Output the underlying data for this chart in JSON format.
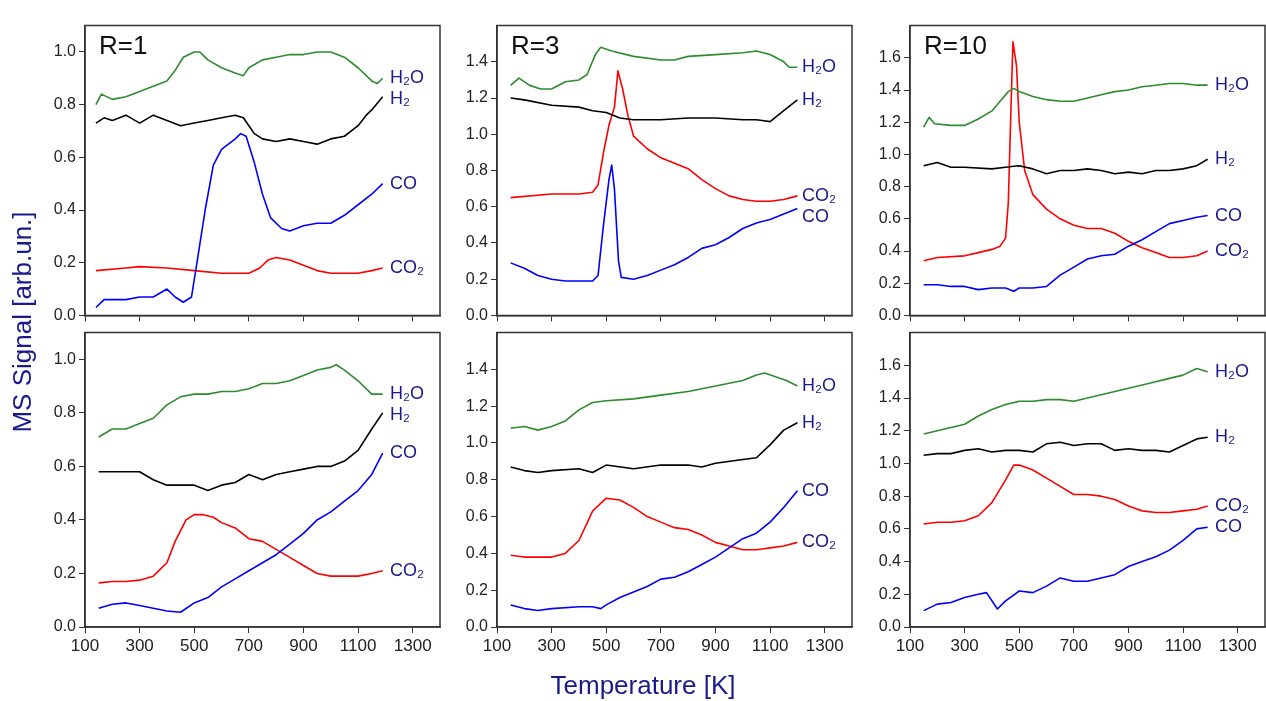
{
  "chart_data": [
    {
      "type": "line",
      "title": "R=1",
      "ylabel": "MS Signal [arb.un.]",
      "tick_labels": "y",
      "xlim": [
        100,
        1400
      ],
      "xticks": [
        100,
        300,
        500,
        700,
        900,
        1100,
        1300
      ],
      "ylim": [
        0,
        1.1
      ],
      "yticks": [
        {
          "value": 0,
          "label": "0.0"
        },
        {
          "value": 0.2,
          "label": "0.2"
        },
        {
          "value": 0.4,
          "label": "0.4"
        },
        {
          "value": 0.6,
          "label": "0.6"
        },
        {
          "value": 0.8,
          "label": "0.8"
        },
        {
          "value": 1,
          "label": "1.0"
        }
      ],
      "series": [
        {
          "name": "H₂O",
          "color": "#2e8b2e",
          "x": [
            140,
            160,
            200,
            250,
            300,
            350,
            400,
            430,
            460,
            500,
            520,
            550,
            600,
            650,
            680,
            700,
            750,
            800,
            850,
            900,
            950,
            1000,
            1050,
            1100,
            1150,
            1170,
            1190
          ],
          "values": [
            0.8,
            0.84,
            0.82,
            0.83,
            0.85,
            0.87,
            0.89,
            0.93,
            0.98,
            1.0,
            1.0,
            0.97,
            0.94,
            0.92,
            0.91,
            0.94,
            0.97,
            0.98,
            0.99,
            0.99,
            1.0,
            1.0,
            0.98,
            0.94,
            0.89,
            0.88,
            0.9
          ]
        },
        {
          "name": "H₂",
          "color": "#000000",
          "x": [
            140,
            170,
            200,
            250,
            300,
            350,
            400,
            450,
            500,
            550,
            600,
            650,
            680,
            700,
            720,
            750,
            800,
            850,
            900,
            950,
            1000,
            1050,
            1100,
            1130,
            1150,
            1190
          ],
          "values": [
            0.73,
            0.75,
            0.74,
            0.76,
            0.73,
            0.76,
            0.74,
            0.72,
            0.73,
            0.74,
            0.75,
            0.76,
            0.75,
            0.72,
            0.69,
            0.67,
            0.66,
            0.67,
            0.66,
            0.65,
            0.67,
            0.68,
            0.72,
            0.76,
            0.78,
            0.83
          ]
        },
        {
          "name": "CO",
          "color": "#0000ff",
          "x": [
            140,
            170,
            250,
            300,
            350,
            400,
            430,
            460,
            490,
            510,
            540,
            570,
            600,
            650,
            670,
            690,
            720,
            750,
            780,
            820,
            850,
            900,
            950,
            1000,
            1050,
            1100,
            1150,
            1190
          ],
          "values": [
            0.03,
            0.06,
            0.06,
            0.07,
            0.07,
            0.1,
            0.07,
            0.05,
            0.07,
            0.2,
            0.4,
            0.57,
            0.63,
            0.67,
            0.69,
            0.68,
            0.58,
            0.46,
            0.37,
            0.33,
            0.32,
            0.34,
            0.35,
            0.35,
            0.38,
            0.42,
            0.46,
            0.5
          ]
        },
        {
          "name": "CO₂",
          "color": "#ff0000",
          "x": [
            140,
            250,
            300,
            400,
            500,
            600,
            700,
            740,
            770,
            800,
            850,
            900,
            950,
            1000,
            1050,
            1100,
            1150,
            1190
          ],
          "values": [
            0.17,
            0.18,
            0.185,
            0.18,
            0.17,
            0.16,
            0.16,
            0.18,
            0.21,
            0.22,
            0.21,
            0.19,
            0.17,
            0.16,
            0.16,
            0.16,
            0.17,
            0.18
          ]
        }
      ]
    },
    {
      "type": "line",
      "title": "R=3",
      "tick_labels": "y",
      "xlim": [
        100,
        1400
      ],
      "xticks": [
        100,
        300,
        500,
        700,
        900,
        1100,
        1300
      ],
      "ylim": [
        0,
        1.6
      ],
      "yticks": [
        {
          "value": 0,
          "label": "0.0"
        },
        {
          "value": 0.2,
          "label": "0.2"
        },
        {
          "value": 0.4,
          "label": "0.4"
        },
        {
          "value": 0.6,
          "label": "0.6"
        },
        {
          "value": 0.8,
          "label": "0.8"
        },
        {
          "value": 1,
          "label": "1.0"
        },
        {
          "value": 1.2,
          "label": "1.2"
        },
        {
          "value": 1.4,
          "label": "1.4"
        }
      ],
      "series": [
        {
          "name": "H₂O",
          "color": "#2e8b2e",
          "x": [
            150,
            180,
            220,
            260,
            300,
            350,
            400,
            430,
            460,
            480,
            520,
            600,
            700,
            750,
            800,
            900,
            1000,
            1050,
            1100,
            1150,
            1170,
            1200
          ],
          "values": [
            1.27,
            1.31,
            1.27,
            1.25,
            1.25,
            1.29,
            1.3,
            1.33,
            1.44,
            1.48,
            1.46,
            1.43,
            1.41,
            1.41,
            1.43,
            1.44,
            1.45,
            1.46,
            1.44,
            1.4,
            1.37,
            1.37
          ]
        },
        {
          "name": "H₂",
          "color": "#000000",
          "x": [
            150,
            200,
            300,
            400,
            450,
            500,
            550,
            600,
            700,
            800,
            900,
            1000,
            1050,
            1100,
            1150,
            1200
          ],
          "values": [
            1.2,
            1.19,
            1.16,
            1.15,
            1.13,
            1.12,
            1.09,
            1.08,
            1.08,
            1.09,
            1.09,
            1.08,
            1.08,
            1.07,
            1.13,
            1.19
          ]
        },
        {
          "name": "CO₂",
          "color": "#ff0000",
          "x": [
            150,
            300,
            400,
            450,
            470,
            490,
            510,
            530,
            543,
            560,
            580,
            600,
            650,
            700,
            750,
            800,
            850,
            900,
            950,
            1000,
            1050,
            1100,
            1150,
            1200
          ],
          "values": [
            0.65,
            0.67,
            0.67,
            0.68,
            0.72,
            0.9,
            1.05,
            1.15,
            1.35,
            1.25,
            1.1,
            0.99,
            0.92,
            0.87,
            0.84,
            0.81,
            0.75,
            0.7,
            0.66,
            0.64,
            0.63,
            0.63,
            0.64,
            0.66
          ]
        },
        {
          "name": "CO",
          "color": "#0000ff",
          "x": [
            150,
            200,
            250,
            300,
            350,
            400,
            450,
            470,
            490,
            510,
            520,
            530,
            545,
            555,
            600,
            650,
            700,
            750,
            800,
            850,
            900,
            950,
            1000,
            1050,
            1100,
            1150,
            1200
          ],
          "values": [
            0.29,
            0.26,
            0.22,
            0.2,
            0.19,
            0.19,
            0.19,
            0.22,
            0.5,
            0.75,
            0.83,
            0.7,
            0.3,
            0.21,
            0.2,
            0.22,
            0.25,
            0.28,
            0.32,
            0.37,
            0.39,
            0.43,
            0.48,
            0.51,
            0.53,
            0.56,
            0.59
          ]
        }
      ]
    },
    {
      "type": "line",
      "title": "R=10",
      "tick_labels": "y",
      "xlim": [
        100,
        1400
      ],
      "xticks": [
        100,
        300,
        500,
        700,
        900,
        1100,
        1300
      ],
      "ylim": [
        0,
        1.8
      ],
      "yticks": [
        {
          "value": 0,
          "label": "0.0"
        },
        {
          "value": 0.2,
          "label": "0.2"
        },
        {
          "value": 0.4,
          "label": "0.4"
        },
        {
          "value": 0.6,
          "label": "0.6"
        },
        {
          "value": 0.8,
          "label": "0.8"
        },
        {
          "value": 1,
          "label": "1.0"
        },
        {
          "value": 1.2,
          "label": "1.2"
        },
        {
          "value": 1.4,
          "label": "1.4"
        },
        {
          "value": 1.6,
          "label": "1.6"
        }
      ],
      "series": [
        {
          "name": "H₂O",
          "color": "#2e8b2e",
          "x": [
            150,
            170,
            190,
            250,
            300,
            350,
            400,
            430,
            460,
            480,
            500,
            550,
            600,
            650,
            700,
            750,
            800,
            850,
            900,
            950,
            1000,
            1050,
            1100,
            1150,
            1190
          ],
          "values": [
            1.17,
            1.23,
            1.19,
            1.18,
            1.18,
            1.22,
            1.27,
            1.33,
            1.39,
            1.41,
            1.39,
            1.36,
            1.34,
            1.33,
            1.33,
            1.35,
            1.37,
            1.39,
            1.4,
            1.42,
            1.43,
            1.44,
            1.44,
            1.43,
            1.43
          ]
        },
        {
          "name": "H₂",
          "color": "#000000",
          "x": [
            150,
            200,
            250,
            300,
            400,
            450,
            500,
            550,
            600,
            650,
            700,
            750,
            800,
            850,
            900,
            950,
            1000,
            1050,
            1100,
            1150,
            1190
          ],
          "values": [
            0.93,
            0.95,
            0.92,
            0.92,
            0.91,
            0.92,
            0.93,
            0.91,
            0.88,
            0.9,
            0.9,
            0.91,
            0.9,
            0.88,
            0.89,
            0.88,
            0.9,
            0.9,
            0.91,
            0.93,
            0.97
          ]
        },
        {
          "name": "CO",
          "color": "#0000ff",
          "x": [
            150,
            200,
            250,
            300,
            350,
            400,
            450,
            480,
            500,
            550,
            600,
            650,
            700,
            750,
            800,
            850,
            900,
            950,
            1000,
            1050,
            1100,
            1150,
            1190
          ],
          "values": [
            0.19,
            0.19,
            0.18,
            0.18,
            0.16,
            0.17,
            0.17,
            0.15,
            0.17,
            0.17,
            0.18,
            0.25,
            0.3,
            0.35,
            0.37,
            0.38,
            0.43,
            0.47,
            0.52,
            0.57,
            0.59,
            0.61,
            0.62
          ]
        },
        {
          "name": "CO₂",
          "color": "#ff0000",
          "x": [
            150,
            200,
            300,
            350,
            400,
            430,
            450,
            460,
            470,
            477,
            490,
            500,
            520,
            550,
            600,
            650,
            700,
            750,
            800,
            850,
            900,
            950,
            1000,
            1050,
            1100,
            1150,
            1190
          ],
          "values": [
            0.34,
            0.36,
            0.37,
            0.39,
            0.41,
            0.43,
            0.48,
            0.7,
            1.3,
            1.7,
            1.55,
            1.2,
            0.9,
            0.75,
            0.66,
            0.6,
            0.56,
            0.54,
            0.54,
            0.51,
            0.46,
            0.42,
            0.39,
            0.36,
            0.36,
            0.37,
            0.4
          ]
        }
      ]
    },
    {
      "type": "line",
      "xlim": [
        100,
        1400
      ],
      "xticks": [
        100,
        300,
        500,
        700,
        900,
        1100,
        1300
      ],
      "ylim": [
        0,
        1.1
      ],
      "yticks": [
        {
          "value": 0,
          "label": "0.0"
        },
        {
          "value": 0.2,
          "label": "0.2"
        },
        {
          "value": 0.4,
          "label": "0.4"
        },
        {
          "value": 0.6,
          "label": "0.6"
        },
        {
          "value": 0.8,
          "label": "0.8"
        },
        {
          "value": 1,
          "label": "1.0"
        }
      ],
      "series": [
        {
          "name": "H₂O",
          "color": "#2e8b2e",
          "x": [
            150,
            200,
            250,
            300,
            350,
            400,
            450,
            500,
            550,
            600,
            650,
            700,
            750,
            800,
            850,
            900,
            950,
            1000,
            1020,
            1050,
            1100,
            1150,
            1190
          ],
          "values": [
            0.71,
            0.74,
            0.74,
            0.76,
            0.78,
            0.83,
            0.86,
            0.87,
            0.87,
            0.88,
            0.88,
            0.89,
            0.91,
            0.91,
            0.92,
            0.94,
            0.96,
            0.97,
            0.98,
            0.96,
            0.92,
            0.87,
            0.87
          ]
        },
        {
          "name": "H₂",
          "color": "#000000",
          "x": [
            150,
            200,
            250,
            300,
            350,
            400,
            450,
            500,
            550,
            600,
            650,
            700,
            750,
            800,
            850,
            900,
            950,
            1000,
            1050,
            1100,
            1150,
            1190
          ],
          "values": [
            0.58,
            0.58,
            0.58,
            0.58,
            0.55,
            0.53,
            0.53,
            0.53,
            0.51,
            0.53,
            0.54,
            0.57,
            0.55,
            0.57,
            0.58,
            0.59,
            0.6,
            0.6,
            0.62,
            0.66,
            0.74,
            0.8
          ]
        },
        {
          "name": "CO",
          "color": "#0000ff",
          "x": [
            150,
            200,
            250,
            300,
            350,
            400,
            450,
            500,
            550,
            600,
            650,
            700,
            750,
            800,
            850,
            900,
            950,
            1000,
            1050,
            1100,
            1150,
            1190
          ],
          "values": [
            0.07,
            0.085,
            0.09,
            0.08,
            0.07,
            0.06,
            0.055,
            0.09,
            0.11,
            0.15,
            0.18,
            0.21,
            0.24,
            0.27,
            0.31,
            0.35,
            0.4,
            0.43,
            0.47,
            0.51,
            0.57,
            0.65
          ]
        },
        {
          "name": "CO₂",
          "color": "#ff0000",
          "x": [
            150,
            200,
            250,
            300,
            350,
            400,
            430,
            470,
            500,
            530,
            570,
            600,
            650,
            700,
            750,
            800,
            850,
            900,
            950,
            1000,
            1050,
            1100,
            1150,
            1190
          ],
          "values": [
            0.165,
            0.17,
            0.17,
            0.175,
            0.19,
            0.24,
            0.32,
            0.4,
            0.42,
            0.42,
            0.41,
            0.39,
            0.37,
            0.33,
            0.32,
            0.29,
            0.26,
            0.23,
            0.2,
            0.19,
            0.19,
            0.19,
            0.2,
            0.21
          ]
        }
      ]
    },
    {
      "type": "line",
      "xlabel": "Temperature [K]",
      "xlim": [
        100,
        1400
      ],
      "xticks": [
        100,
        300,
        500,
        700,
        900,
        1100,
        1300
      ],
      "ylim": [
        0,
        1.6
      ],
      "yticks": [
        {
          "value": 0,
          "label": "0.0"
        },
        {
          "value": 0.2,
          "label": "0.2"
        },
        {
          "value": 0.4,
          "label": "0.4"
        },
        {
          "value": 0.6,
          "label": "0.6"
        },
        {
          "value": 0.8,
          "label": "0.8"
        },
        {
          "value": 1,
          "label": "1.0"
        },
        {
          "value": 1.2,
          "label": "1.2"
        },
        {
          "value": 1.4,
          "label": "1.4"
        }
      ],
      "series": [
        {
          "name": "H₂O",
          "color": "#2e8b2e",
          "x": [
            150,
            200,
            250,
            300,
            350,
            400,
            450,
            500,
            600,
            700,
            800,
            900,
            1000,
            1050,
            1080,
            1120,
            1160,
            1200
          ],
          "values": [
            1.08,
            1.09,
            1.07,
            1.09,
            1.12,
            1.18,
            1.22,
            1.23,
            1.24,
            1.26,
            1.28,
            1.31,
            1.34,
            1.37,
            1.38,
            1.36,
            1.34,
            1.31
          ]
        },
        {
          "name": "H₂",
          "color": "#000000",
          "x": [
            150,
            200,
            250,
            300,
            400,
            450,
            500,
            600,
            700,
            800,
            850,
            900,
            1000,
            1050,
            1100,
            1150,
            1200
          ],
          "values": [
            0.87,
            0.85,
            0.84,
            0.85,
            0.86,
            0.84,
            0.88,
            0.86,
            0.88,
            0.88,
            0.87,
            0.89,
            0.91,
            0.92,
            0.99,
            1.07,
            1.11
          ]
        },
        {
          "name": "CO",
          "color": "#0000ff",
          "x": [
            150,
            200,
            250,
            300,
            400,
            450,
            480,
            500,
            550,
            600,
            650,
            700,
            750,
            800,
            850,
            900,
            950,
            1000,
            1050,
            1100,
            1150,
            1200
          ],
          "values": [
            0.12,
            0.1,
            0.09,
            0.1,
            0.11,
            0.11,
            0.1,
            0.12,
            0.16,
            0.19,
            0.22,
            0.26,
            0.27,
            0.3,
            0.34,
            0.38,
            0.43,
            0.48,
            0.51,
            0.57,
            0.65,
            0.74
          ]
        },
        {
          "name": "CO₂",
          "color": "#ff0000",
          "x": [
            150,
            200,
            300,
            350,
            400,
            450,
            500,
            550,
            600,
            650,
            700,
            750,
            800,
            850,
            900,
            950,
            1000,
            1050,
            1100,
            1150,
            1200
          ],
          "values": [
            0.39,
            0.38,
            0.38,
            0.4,
            0.47,
            0.63,
            0.7,
            0.69,
            0.65,
            0.6,
            0.57,
            0.54,
            0.53,
            0.5,
            0.46,
            0.44,
            0.42,
            0.42,
            0.43,
            0.44,
            0.46
          ]
        }
      ]
    },
    {
      "type": "line",
      "xlim": [
        100,
        1400
      ],
      "xticks": [
        100,
        300,
        500,
        700,
        900,
        1100,
        1300
      ],
      "ylim": [
        0,
        1.8
      ],
      "yticks": [
        {
          "value": 0,
          "label": "0.0"
        },
        {
          "value": 0.2,
          "label": "0.2"
        },
        {
          "value": 0.4,
          "label": "0.4"
        },
        {
          "value": 0.6,
          "label": "0.6"
        },
        {
          "value": 0.8,
          "label": "0.8"
        },
        {
          "value": 1,
          "label": "1.0"
        },
        {
          "value": 1.2,
          "label": "1.2"
        },
        {
          "value": 1.4,
          "label": "1.4"
        },
        {
          "value": 1.6,
          "label": "1.6"
        }
      ],
      "series": [
        {
          "name": "H₂O",
          "color": "#2e8b2e",
          "x": [
            150,
            200,
            250,
            300,
            350,
            400,
            450,
            500,
            550,
            600,
            650,
            700,
            750,
            800,
            850,
            900,
            950,
            1000,
            1050,
            1100,
            1150,
            1190
          ],
          "values": [
            1.18,
            1.2,
            1.22,
            1.24,
            1.29,
            1.33,
            1.36,
            1.38,
            1.38,
            1.39,
            1.39,
            1.38,
            1.4,
            1.42,
            1.44,
            1.46,
            1.48,
            1.5,
            1.52,
            1.54,
            1.58,
            1.56
          ]
        },
        {
          "name": "H₂",
          "color": "#000000",
          "x": [
            150,
            200,
            250,
            300,
            350,
            400,
            450,
            500,
            550,
            600,
            650,
            700,
            750,
            800,
            850,
            900,
            950,
            1000,
            1050,
            1100,
            1150,
            1190
          ],
          "values": [
            1.05,
            1.06,
            1.06,
            1.08,
            1.09,
            1.07,
            1.08,
            1.08,
            1.07,
            1.12,
            1.13,
            1.11,
            1.12,
            1.12,
            1.08,
            1.09,
            1.08,
            1.08,
            1.07,
            1.11,
            1.15,
            1.16
          ]
        },
        {
          "name": "CO₂",
          "color": "#ff0000",
          "x": [
            150,
            200,
            250,
            300,
            350,
            400,
            450,
            480,
            500,
            550,
            600,
            650,
            700,
            750,
            800,
            850,
            900,
            950,
            1000,
            1050,
            1100,
            1150,
            1190
          ],
          "values": [
            0.63,
            0.64,
            0.64,
            0.65,
            0.68,
            0.76,
            0.9,
            0.99,
            0.99,
            0.96,
            0.91,
            0.86,
            0.81,
            0.81,
            0.8,
            0.78,
            0.74,
            0.71,
            0.7,
            0.7,
            0.71,
            0.72,
            0.74
          ]
        },
        {
          "name": "CO",
          "color": "#0000ff",
          "x": [
            150,
            200,
            250,
            300,
            350,
            380,
            420,
            450,
            500,
            550,
            600,
            650,
            700,
            750,
            800,
            850,
            900,
            950,
            1000,
            1050,
            1100,
            1150,
            1190
          ],
          "values": [
            0.1,
            0.14,
            0.15,
            0.18,
            0.2,
            0.21,
            0.11,
            0.16,
            0.22,
            0.21,
            0.25,
            0.3,
            0.28,
            0.28,
            0.3,
            0.32,
            0.37,
            0.4,
            0.43,
            0.47,
            0.53,
            0.6,
            0.61
          ]
        }
      ]
    }
  ]
}
